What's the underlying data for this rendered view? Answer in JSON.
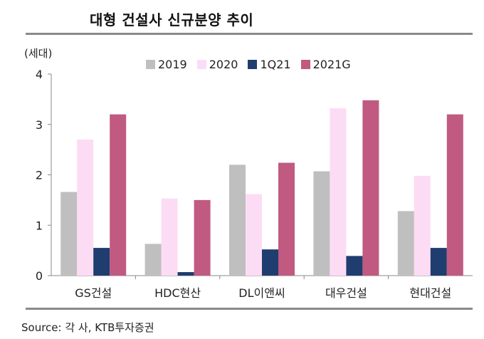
{
  "title": "대형 건설사 신규분양 추이",
  "source": "Source: 각 사, KTB투자증권",
  "chart_data": {
    "type": "bar",
    "unit_label": "(세대)",
    "categories": [
      "GS건설",
      "HDC현산",
      "DL이앤씨",
      "대우건설",
      "현대건설"
    ],
    "series": [
      {
        "name": "2019",
        "color": "#bfbfbf",
        "values": [
          1.66,
          0.63,
          2.2,
          2.07,
          1.28
        ]
      },
      {
        "name": "2020",
        "color": "#fcdcf4",
        "values": [
          2.7,
          1.53,
          1.62,
          3.32,
          1.98
        ]
      },
      {
        "name": "1Q21",
        "color": "#1f3d6e",
        "values": [
          0.55,
          0.07,
          0.52,
          0.39,
          0.55
        ]
      },
      {
        "name": "2021G",
        "color": "#c05a80",
        "values": [
          3.2,
          1.5,
          2.24,
          3.48,
          3.2
        ]
      }
    ],
    "yticks": [
      "0",
      "1",
      "2",
      "3",
      "4"
    ],
    "ylim": [
      0,
      4
    ],
    "legend_position": "top"
  }
}
